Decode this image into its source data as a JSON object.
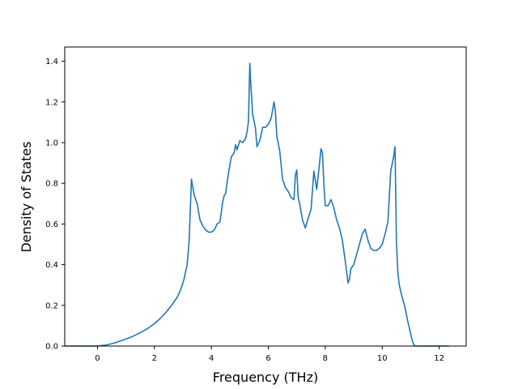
{
  "chart_data": {
    "type": "line",
    "title": "",
    "xlabel": "Frequency (THz)",
    "ylabel": "Density of States",
    "xlim": [
      -1.15,
      12.95
    ],
    "ylim": [
      0.0,
      1.47
    ],
    "xticks": [
      0,
      2,
      4,
      6,
      8,
      10,
      12
    ],
    "yticks": [
      0.0,
      0.2,
      0.4,
      0.6,
      0.8,
      1.0,
      1.2,
      1.4
    ],
    "xtick_labels": [
      "0",
      "2",
      "4",
      "6",
      "8",
      "10",
      "12"
    ],
    "ytick_labels": [
      "0.0",
      "0.2",
      "0.4",
      "0.6",
      "0.8",
      "1.0",
      "1.2",
      "1.4"
    ],
    "grid": false,
    "series": [
      {
        "color": "#1f77b4",
        "x": [
          -1.15,
          -0.5,
          0.0,
          0.3,
          0.6,
          0.9,
          1.2,
          1.5,
          1.8,
          2.0,
          2.2,
          2.4,
          2.6,
          2.8,
          2.9,
          3.0,
          3.05,
          3.1,
          3.15,
          3.18,
          3.22,
          3.3,
          3.4,
          3.5,
          3.6,
          3.7,
          3.8,
          3.9,
          4.0,
          4.05,
          4.1,
          4.2,
          4.3,
          4.4,
          4.45,
          4.5,
          4.6,
          4.7,
          4.75,
          4.8,
          4.85,
          4.9,
          5.0,
          5.1,
          5.2,
          5.25,
          5.3,
          5.35,
          5.38,
          5.45,
          5.55,
          5.6,
          5.7,
          5.75,
          5.8,
          5.9,
          6.0,
          6.1,
          6.2,
          6.25,
          6.3,
          6.4,
          6.5,
          6.6,
          6.7,
          6.8,
          6.9,
          6.95,
          7.0,
          7.05,
          7.1,
          7.2,
          7.3,
          7.4,
          7.5,
          7.6,
          7.7,
          7.8,
          7.85,
          7.9,
          7.95,
          8.0,
          8.1,
          8.2,
          8.3,
          8.4,
          8.5,
          8.6,
          8.7,
          8.8,
          8.85,
          8.9,
          9.0,
          9.1,
          9.2,
          9.3,
          9.4,
          9.5,
          9.6,
          9.7,
          9.8,
          9.9,
          10.0,
          10.1,
          10.2,
          10.3,
          10.4,
          10.45,
          10.5,
          10.55,
          10.6,
          10.7,
          10.8,
          10.9,
          11.0,
          11.05,
          11.1,
          11.15,
          11.2,
          11.3,
          11.5,
          12.0,
          12.35
        ],
        "y": [
          0.0,
          0.0,
          0.0,
          0.005,
          0.015,
          0.03,
          0.045,
          0.065,
          0.09,
          0.11,
          0.135,
          0.165,
          0.2,
          0.24,
          0.27,
          0.31,
          0.335,
          0.37,
          0.4,
          0.45,
          0.52,
          0.82,
          0.74,
          0.7,
          0.62,
          0.59,
          0.57,
          0.56,
          0.56,
          0.565,
          0.57,
          0.6,
          0.61,
          0.71,
          0.74,
          0.75,
          0.85,
          0.93,
          0.94,
          0.95,
          0.99,
          0.965,
          1.01,
          1.0,
          1.02,
          1.05,
          1.1,
          1.39,
          1.3,
          1.14,
          1.07,
          0.98,
          1.01,
          1.04,
          1.075,
          1.075,
          1.09,
          1.12,
          1.2,
          1.15,
          1.03,
          0.96,
          0.82,
          0.78,
          0.76,
          0.73,
          0.72,
          0.84,
          0.865,
          0.73,
          0.7,
          0.62,
          0.58,
          0.63,
          0.67,
          0.86,
          0.77,
          0.9,
          0.97,
          0.95,
          0.8,
          0.69,
          0.69,
          0.72,
          0.68,
          0.62,
          0.58,
          0.52,
          0.42,
          0.31,
          0.33,
          0.38,
          0.4,
          0.45,
          0.5,
          0.55,
          0.575,
          0.52,
          0.48,
          0.47,
          0.47,
          0.48,
          0.5,
          0.55,
          0.61,
          0.86,
          0.93,
          0.98,
          0.51,
          0.36,
          0.3,
          0.24,
          0.19,
          0.12,
          0.06,
          0.03,
          0.01,
          0.0,
          0.0,
          0.0,
          0.0,
          0.0,
          0.0
        ]
      }
    ]
  }
}
